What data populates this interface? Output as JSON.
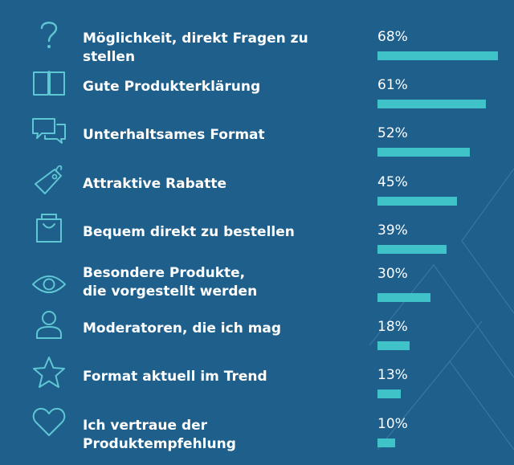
{
  "colors": {
    "background": "#1f5f8b",
    "bar": "#3fc3c8",
    "icon": "#5fc6d4",
    "text": "#ffffff"
  },
  "chart_data": {
    "type": "bar",
    "orientation": "horizontal",
    "title": "",
    "xlabel": "",
    "ylabel": "",
    "xlim": [
      0,
      68
    ],
    "categories": [
      "Möglichkeit, direkt Fragen zu stellen",
      "Gute Produkterklärung",
      "Unterhaltsames Format",
      "Attraktive Rabatte",
      "Bequem direkt zu bestellen",
      "Besondere Produkte,\ndie vorgestellt werden",
      "Moderatoren, die ich mag",
      "Format aktuell im Trend",
      "Ich vertraue der Produktempfehlung"
    ],
    "values": [
      68,
      61,
      52,
      45,
      39,
      30,
      18,
      13,
      10
    ],
    "value_labels": [
      "68%",
      "61%",
      "52%",
      "45%",
      "39%",
      "30%",
      "18%",
      "13%",
      "10%"
    ],
    "icons": [
      "question-mark-icon",
      "open-book-icon",
      "chat-bubbles-icon",
      "price-tag-icon",
      "shopping-bag-icon",
      "eye-icon",
      "person-icon",
      "star-icon",
      "heart-icon"
    ]
  }
}
